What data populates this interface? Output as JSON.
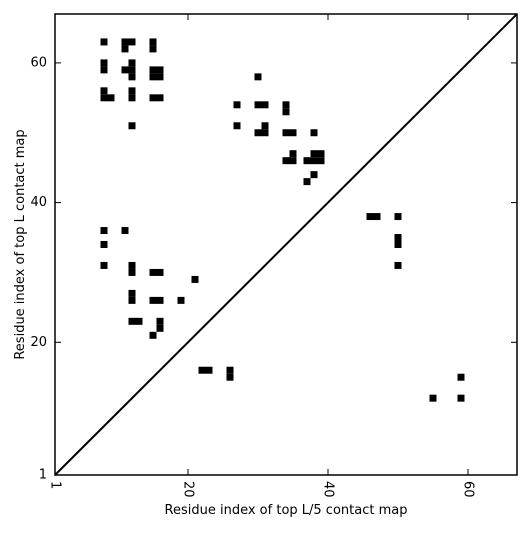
{
  "chart_data": {
    "type": "heatmap",
    "title": "",
    "xlabel": "Residue index of top L/5 contact map",
    "ylabel": "Residue index of top L contact map",
    "xlim": [
      1,
      67
    ],
    "ylim": [
      1,
      67
    ],
    "x_ticks": [
      1,
      20,
      40,
      60
    ],
    "y_ticks": [
      1,
      20,
      40,
      60
    ],
    "diagonal_line": true,
    "cell_color": "#000000",
    "upper_triangle_cells": [
      [
        8,
        63
      ],
      [
        8,
        60
      ],
      [
        8,
        59
      ],
      [
        8,
        56
      ],
      [
        8,
        55
      ],
      [
        9,
        55
      ],
      [
        11,
        63
      ],
      [
        11,
        62
      ],
      [
        12,
        63
      ],
      [
        11,
        59
      ],
      [
        12,
        59
      ],
      [
        12,
        58
      ],
      [
        12,
        60
      ],
      [
        12,
        56
      ],
      [
        12,
        55
      ],
      [
        12,
        51
      ],
      [
        15,
        63
      ],
      [
        15,
        62
      ],
      [
        15,
        59
      ],
      [
        16,
        59
      ],
      [
        15,
        58
      ],
      [
        16,
        58
      ],
      [
        15,
        55
      ],
      [
        16,
        55
      ],
      [
        27,
        54
      ],
      [
        27,
        51
      ],
      [
        30,
        58
      ],
      [
        30,
        54
      ],
      [
        31,
        54
      ],
      [
        30,
        50
      ],
      [
        31,
        50
      ],
      [
        31,
        51
      ],
      [
        34,
        54
      ],
      [
        34,
        53
      ],
      [
        34,
        50
      ],
      [
        35,
        50
      ],
      [
        34,
        46
      ],
      [
        35,
        46
      ],
      [
        35,
        47
      ],
      [
        37,
        46
      ],
      [
        38,
        46
      ],
      [
        38,
        47
      ],
      [
        39,
        46
      ],
      [
        39,
        47
      ],
      [
        38,
        50
      ],
      [
        38,
        44
      ],
      [
        37,
        43
      ]
    ],
    "lower_triangle_cells": [
      [
        8,
        36
      ],
      [
        8,
        34
      ],
      [
        8,
        31
      ],
      [
        11,
        36
      ],
      [
        12,
        31
      ],
      [
        12,
        30
      ],
      [
        12,
        27
      ],
      [
        12,
        26
      ],
      [
        12,
        23
      ],
      [
        13,
        23
      ],
      [
        15,
        30
      ],
      [
        16,
        30
      ],
      [
        15,
        26
      ],
      [
        16,
        26
      ],
      [
        16,
        23
      ],
      [
        16,
        22
      ],
      [
        15,
        21
      ],
      [
        19,
        26
      ],
      [
        21,
        29
      ],
      [
        22,
        16
      ],
      [
        23,
        16
      ],
      [
        26,
        16
      ],
      [
        26,
        15
      ],
      [
        46,
        38
      ],
      [
        47,
        38
      ],
      [
        50,
        38
      ],
      [
        50,
        35
      ],
      [
        50,
        34
      ],
      [
        50,
        31
      ],
      [
        55,
        12
      ],
      [
        59,
        15
      ],
      [
        59,
        12
      ]
    ]
  }
}
